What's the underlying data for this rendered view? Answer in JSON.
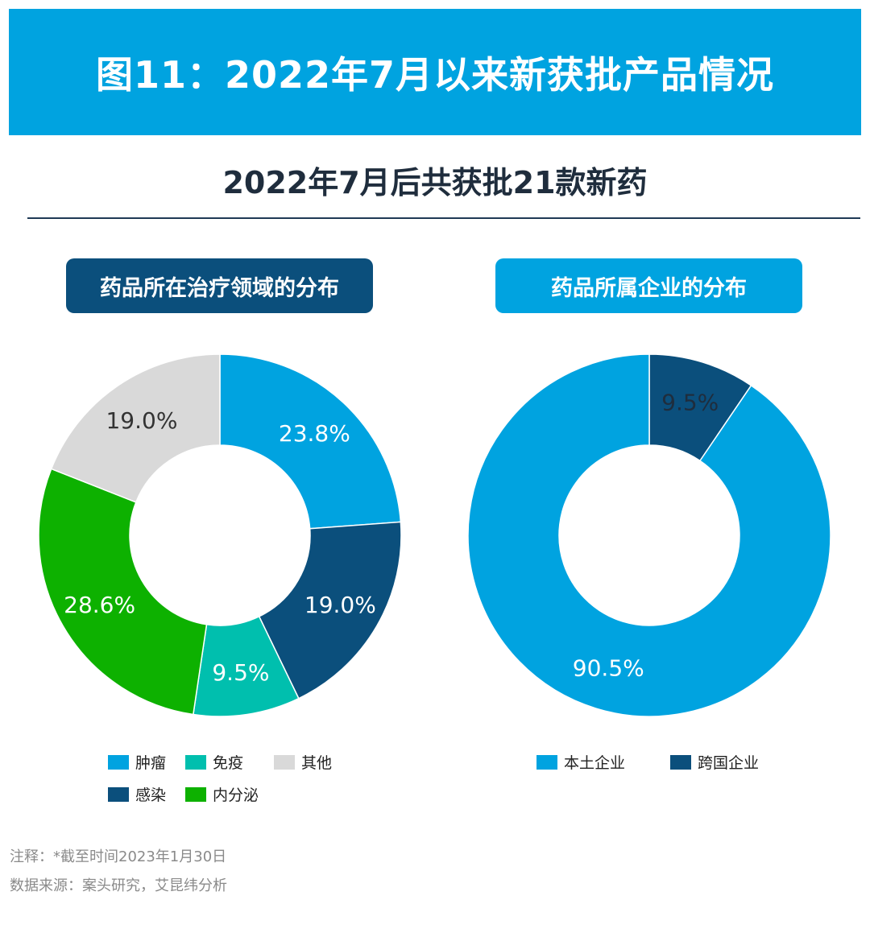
{
  "header": {
    "title": "图11：2022年7月以来新获批产品情况",
    "subtitle": "2022年7月后共获批21款新药"
  },
  "panels": {
    "left_title": "药品所在治疗领域的分布",
    "right_title": "药品所属企业的分布"
  },
  "chart_data": [
    {
      "type": "pie",
      "title": "药品所在治疗领域的分布",
      "donut": true,
      "slices": [
        {
          "label": "肿瘤",
          "value": 23.8,
          "text": "23.8%",
          "color": "#00a3e0"
        },
        {
          "label": "感染",
          "value": 19.0,
          "text": "19.0%",
          "color": "#0b4f7c"
        },
        {
          "label": "免疫",
          "value": 9.5,
          "text": "9.5%",
          "color": "#00bfae"
        },
        {
          "label": "内分泌",
          "value": 28.6,
          "text": "28.6%",
          "color": "#0db100"
        },
        {
          "label": "其他",
          "value": 19.0,
          "text": "19.0%",
          "color": "#d9d9d9"
        }
      ],
      "legend_order": [
        "肿瘤",
        "免疫",
        "其他",
        "感染",
        "内分泌"
      ]
    },
    {
      "type": "pie",
      "title": "药品所属企业的分布",
      "donut": true,
      "slices": [
        {
          "label": "跨国企业",
          "value": 9.5,
          "text": "9.5%",
          "color": "#0b4f7c"
        },
        {
          "label": "本土企业",
          "value": 90.5,
          "text": "90.5%",
          "color": "#00a3e0"
        }
      ],
      "legend_order": [
        "本土企业",
        "跨国企业"
      ]
    }
  ],
  "footer": {
    "note": "注释：*截至时间2023年1月30日",
    "source": "数据来源：案头研究，艾昆纬分析"
  }
}
